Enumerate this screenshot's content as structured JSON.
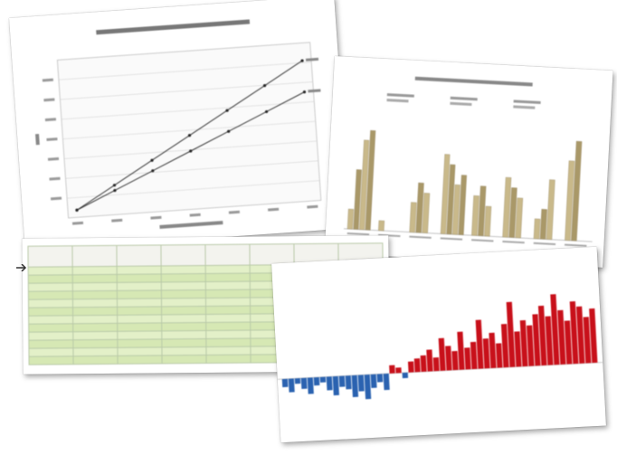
{
  "line_chart": {
    "title": "",
    "xlabel": "",
    "ylabel": "",
    "series": [
      {
        "name": "",
        "values": [
          [
            0,
            0
          ],
          [
            1,
            1.7
          ],
          [
            2,
            3.4
          ],
          [
            3,
            5.1
          ],
          [
            4,
            6.8
          ],
          [
            5,
            8.5
          ],
          [
            6,
            10.2
          ]
        ]
      },
      {
        "name": "",
        "values": [
          [
            0,
            0
          ],
          [
            1,
            1.3
          ],
          [
            2,
            2.6
          ],
          [
            3,
            3.9
          ],
          [
            4,
            5.2
          ],
          [
            5,
            6.5
          ],
          [
            6,
            7.8
          ]
        ]
      }
    ]
  },
  "bar_chart": {
    "title": "",
    "colors": [
      "#c9b98a",
      "#a99868"
    ],
    "groups": [
      [
        2,
        6,
        9,
        10
      ],
      [
        1
      ],
      [
        3,
        5,
        4
      ],
      [
        8,
        7,
        5,
        6
      ],
      [
        4,
        5,
        3
      ],
      [
        6,
        5,
        4
      ],
      [
        2,
        3,
        6
      ],
      [
        8,
        10
      ]
    ]
  },
  "table": {
    "headers": [
      "",
      "",
      "",
      "",
      "",
      "",
      "",
      ""
    ],
    "rows": [
      [
        "",
        "",
        "",
        "",
        "",
        "",
        "",
        ""
      ],
      [
        "",
        "",
        "",
        "",
        "",
        "",
        "",
        ""
      ],
      [
        "",
        "",
        "",
        "",
        "",
        "",
        "",
        ""
      ],
      [
        "",
        "",
        "",
        "",
        "",
        "",
        "",
        ""
      ],
      [
        "",
        "",
        "",
        "",
        "",
        "",
        "",
        ""
      ],
      [
        "",
        "",
        "",
        "",
        "",
        "",
        "",
        ""
      ],
      [
        "",
        "",
        "",
        "",
        "",
        "",
        "",
        ""
      ],
      [
        "",
        "",
        "",
        "",
        "",
        "",
        "",
        ""
      ],
      [
        "",
        "",
        "",
        "",
        "",
        "",
        "",
        ""
      ],
      [
        "",
        "",
        "",
        "",
        "",
        "",
        "",
        ""
      ],
      [
        "",
        "",
        "",
        "",
        "",
        "",
        "",
        ""
      ],
      [
        "",
        "",
        "",
        "",
        "",
        "",
        "",
        ""
      ]
    ]
  },
  "anomaly_chart": {
    "positive_color": "#c8101a",
    "negative_color": "#2a62b0",
    "values": [
      -0.3,
      -0.5,
      -0.2,
      -0.4,
      -0.6,
      -0.3,
      -0.2,
      -0.5,
      -0.7,
      -0.4,
      -0.5,
      -0.8,
      -0.6,
      -0.9,
      -0.5,
      -0.3,
      -0.6,
      0.3,
      0.2,
      -0.2,
      0.4,
      0.5,
      0.6,
      0.8,
      0.5,
      1.2,
      0.9,
      0.7,
      1.4,
      0.8,
      1.0,
      1.8,
      1.1,
      1.3,
      0.9,
      1.6,
      2.4,
      1.3,
      1.7,
      1.5,
      1.9,
      2.2,
      1.8,
      2.6,
      2.0,
      1.6,
      2.3,
      2.1,
      1.7,
      2.0
    ]
  }
}
